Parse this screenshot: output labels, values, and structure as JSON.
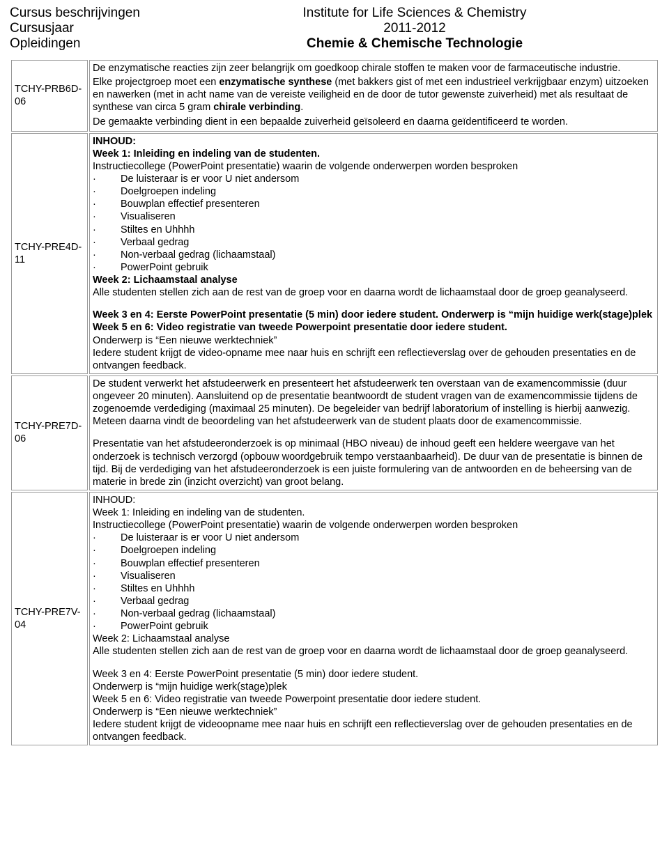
{
  "header": {
    "left1": "Cursus beschrijvingen",
    "left2": "Cursusjaar",
    "left3": "Opleidingen",
    "right1": "Institute for Life Sciences & Chemistry",
    "right2": "2011-2012",
    "right3": "Chemie & Chemische Technologie"
  },
  "rows": [
    {
      "code": "TCHY-PRB6D-06",
      "p1a": " De enzymatische reacties zijn zeer belangrijk om goedkoop chirale stoffen te maken voor de farmaceutische industrie.",
      "p2a": "Elke projectgroep moet een ",
      "p2b": "enzymatische synthese",
      "p2c": " (met bakkers gist of met een industrieel verkrijgbaar enzym) uitzoeken en nawerken (met in acht name van de vereiste veiligheid en de door de tutor gewenste zuiverheid) met als resultaat de synthese van circa 5 gram ",
      "p2d": "chirale verbinding",
      "p2e": ".",
      "p3": "De gemaakte verbinding dient in een bepaalde zuiverheid geïsoleerd en daarna geïdentificeerd te worden."
    },
    {
      "code": "TCHY-PRE4D-11",
      "inhoud": "INHOUD:",
      "w1": "Week 1: Inleiding en indeling van de studenten.",
      "intro": "Instructiecollege (PowerPoint presentatie) waarin de volgende onderwerpen worden besproken",
      "b1": "De luisteraar is er voor U niet andersom",
      "b2": "Doelgroepen indeling",
      "b3": "Bouwplan effectief presenteren",
      "b4": "Visualiseren",
      "b5": "Stiltes en Uhhhh",
      "b6": "Verbaal gedrag",
      "b7": "Non-verbaal gedrag (lichaamstaal)",
      "b8": "PowerPoint gebruik",
      "w2": "Week 2: Lichaamstaal analyse",
      "w2body": "Alle studenten stellen zich aan de rest van de groep voor en daarna wordt de lichaamstaal door de groep geanalyseerd.",
      "w34a": "Week 3 en 4: Eerste PowerPoint presentatie (5 min) door iedere student. Onderwerp is “mijn huidige werk(stage)plek",
      "w56": "Week 5 en 6: Video registratie van tweede Powerpoint presentatie door iedere student.",
      "onderwerp": "Onderwerp is “Een nieuwe werktechniek”",
      "reflect": "Iedere student krijgt de video-opname mee naar huis en schrijft een reflectieverslag over de gehouden presentaties en de ontvangen feedback."
    },
    {
      "code": "TCHY-PRE7D-06",
      "p1": "De student verwerkt het afstudeerwerk en presenteert het afstudeerwerk ten overstaan van de examencommissie (duur ongeveer 20 minuten). Aansluitend op de presentatie beantwoordt de student vragen van de examencommissie tijdens de zogenoemde verdediging (maximaal 25 minuten). De begeleider van bedrijf laboratorium of instelling is hierbij aanwezig. Meteen daarna vindt de beoordeling van het afstudeerwerk van de student plaats door de examencommissie.",
      "p2": "Presentatie van het afstudeeronderzoek is op minimaal  (HBO niveau) de inhoud geeft een heldere weergave van het onderzoek is technisch verzorgd (opbouw woordgebruik tempo verstaanbaarheid). De duur van de presentatie is binnen de tijd. Bij de verdediging van het afstudeeronderzoek is een juiste formulering van de antwoorden en de beheersing van de materie in brede zin (inzicht overzicht) van groot belang."
    },
    {
      "code": "TCHY-PRE7V-04",
      "inhoud": " INHOUD:",
      "w1": "Week 1: Inleiding en indeling van de studenten.",
      "intro": "Instructiecollege (PowerPoint presentatie) waarin de volgende onderwerpen worden besproken",
      "b1": "De luisteraar is er voor U niet andersom",
      "b2": "Doelgroepen indeling",
      "b3": "Bouwplan effectief presenteren",
      "b4": "Visualiseren",
      "b5": "Stiltes en Uhhhh",
      "b6": "Verbaal gedrag",
      "b7": "Non-verbaal gedrag (lichaamstaal)",
      "b8": "PowerPoint gebruik",
      "w2": "Week 2: Lichaamstaal analyse",
      "w2body": "Alle studenten stellen zich aan de rest van de groep voor en daarna wordt de lichaamstaal door de groep geanalyseerd.",
      "w34": "Week 3 en 4: Eerste PowerPoint presentatie (5 min) door iedere student.",
      "w34o": "Onderwerp is “mijn huidige werk(stage)plek",
      "w56": "Week 5 en 6: Video registratie van tweede Powerpoint presentatie door iedere student.",
      "onderwerp": "Onderwerp is “Een nieuwe werktechniek”",
      "reflect": "Iedere student krijgt de videoopname mee naar huis en schrijft een reflectieverslag over de gehouden presentaties en de ontvangen feedback."
    }
  ]
}
